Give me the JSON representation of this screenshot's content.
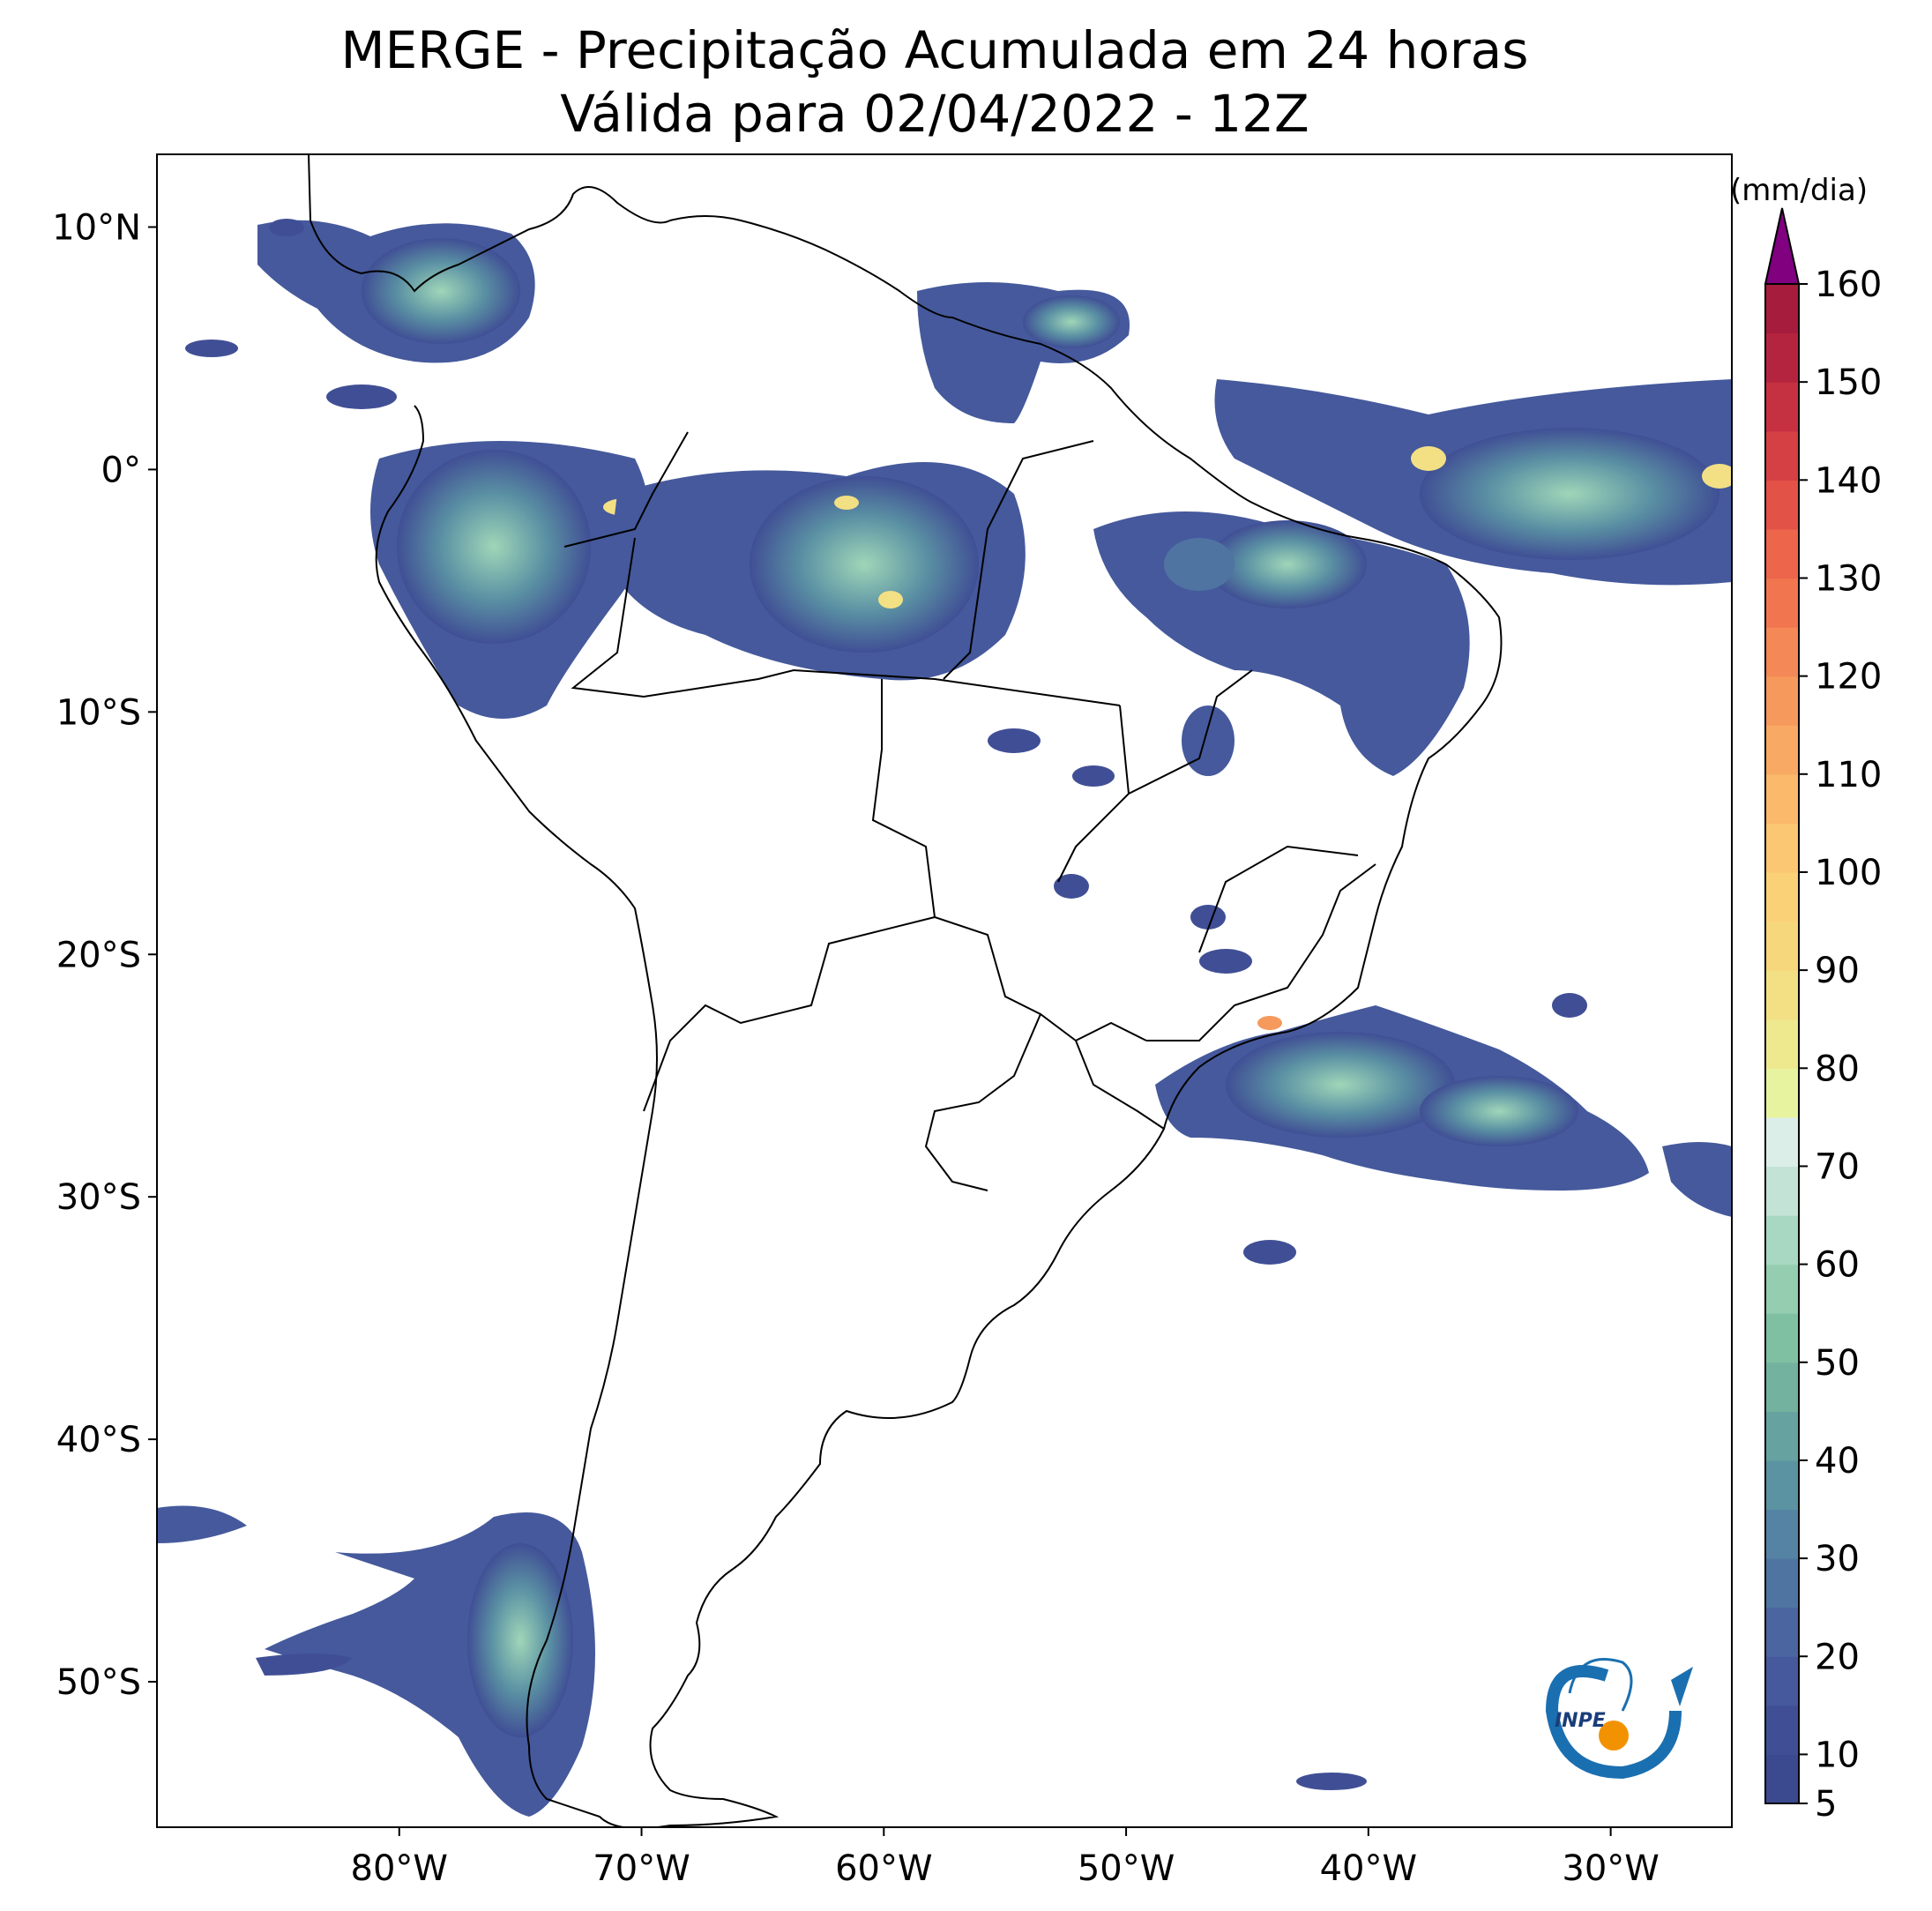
{
  "title": {
    "line1": "MERGE - Precipitação Acumulada em 24 horas",
    "line2": "Válida para 02/04/2022 - 12Z"
  },
  "map": {
    "lon_range": [
      -90,
      -25
    ],
    "lat_range": [
      -56,
      13
    ],
    "lat_ticks": [
      {
        "value": 10,
        "label": "10°N"
      },
      {
        "value": 0,
        "label": "0°"
      },
      {
        "value": -10,
        "label": "10°S"
      },
      {
        "value": -20,
        "label": "20°S"
      },
      {
        "value": -30,
        "label": "30°S"
      },
      {
        "value": -40,
        "label": "40°S"
      },
      {
        "value": -50,
        "label": "50°S"
      }
    ],
    "lon_ticks": [
      {
        "value": -80,
        "label": "80°W"
      },
      {
        "value": -70,
        "label": "70°W"
      },
      {
        "value": -60,
        "label": "60°W"
      },
      {
        "value": -50,
        "label": "50°W"
      },
      {
        "value": -40,
        "label": "40°W"
      },
      {
        "value": -30,
        "label": "30°W"
      }
    ]
  },
  "colorbar": {
    "unit": "(mm/dia)",
    "min": 5,
    "max": 160,
    "extend": "max",
    "tick_values": [
      5,
      10,
      20,
      30,
      40,
      50,
      60,
      70,
      80,
      90,
      100,
      110,
      120,
      130,
      140,
      150,
      160
    ],
    "levels": [
      5,
      10,
      15,
      20,
      25,
      30,
      35,
      40,
      45,
      50,
      55,
      60,
      65,
      70,
      75,
      80,
      85,
      90,
      95,
      100,
      105,
      110,
      115,
      120,
      125,
      130,
      135,
      140,
      145,
      150,
      155,
      160
    ],
    "colors": [
      "#3b4a8f",
      "#404f95",
      "#45599c",
      "#4a65a0",
      "#4f74a2",
      "#5583a3",
      "#5b93a2",
      "#66a3a0",
      "#72b29f",
      "#7fc0a2",
      "#94cdb0",
      "#a9d8c2",
      "#c2e3d6",
      "#dbeee8",
      "#e8f3a0",
      "#eee98e",
      "#f3e084",
      "#f7d77b",
      "#fad177",
      "#fbc772",
      "#fab96b",
      "#f8a963",
      "#f6995c",
      "#f48856",
      "#f17650",
      "#ed654b",
      "#e25247",
      "#d54044",
      "#c63142",
      "#b5243f",
      "#a51c3c"
    ],
    "overflow_color": "#800080"
  },
  "logo": {
    "text": "INPE",
    "colors": {
      "arc": "#1a6fb0",
      "dot": "#f39200"
    }
  }
}
